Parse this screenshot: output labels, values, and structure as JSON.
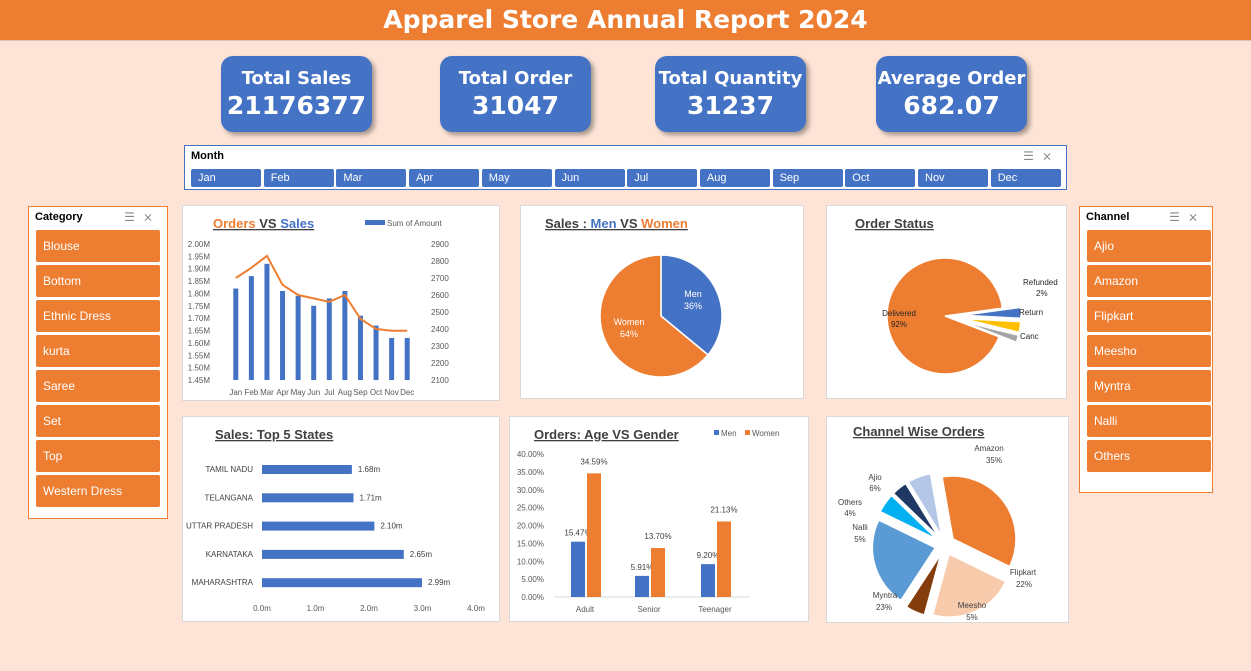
{
  "title": "Apparel Store Annual Report 2024",
  "kpis": [
    {
      "label": "Total Sales",
      "value": "21176377"
    },
    {
      "label": "Total Order",
      "value": "31047"
    },
    {
      "label": "Total Quantity",
      "value": "31237"
    },
    {
      "label": "Average Order",
      "value": "682.07"
    }
  ],
  "month_slicer": {
    "title": "Month",
    "items": [
      "Jan",
      "Feb",
      "Mar",
      "Apr",
      "May",
      "Jun",
      "Jul",
      "Aug",
      "Sep",
      "Oct",
      "Nov",
      "Dec"
    ]
  },
  "category_slicer": {
    "title": "Category",
    "items": [
      "Blouse",
      "Bottom",
      "Ethnic Dress",
      "kurta",
      "Saree",
      "Set",
      "Top",
      "Western Dress"
    ]
  },
  "channel_slicer": {
    "title": "Channel",
    "items": [
      "Ajio",
      "Amazon",
      "Flipkart",
      "Meesho",
      "Myntra",
      "Nalli",
      "Others"
    ]
  },
  "colors": {
    "orange": "#ed7d31",
    "blue": "#4472c4",
    "gold": "#ffc000",
    "grey": "#a5a5a5"
  },
  "chart_data": [
    {
      "id": "orders_vs_sales",
      "type": "bar",
      "title_parts": [
        "Orders",
        " VS ",
        "Sales"
      ],
      "legend": "Sum of Amount",
      "categories": [
        "Jan",
        "Feb",
        "Mar",
        "Apr",
        "May",
        "Jun",
        "Jul",
        "Aug",
        "Sep",
        "Oct",
        "Nov",
        "Dec"
      ],
      "series": [
        {
          "name": "Sum of Amount",
          "values": [
            1.82,
            1.87,
            1.92,
            1.81,
            1.79,
            1.75,
            1.78,
            1.81,
            1.71,
            1.67,
            1.62,
            1.62
          ],
          "axis": "left"
        },
        {
          "values": [
            2700,
            2760,
            2830,
            2660,
            2600,
            2580,
            2560,
            2600,
            2460,
            2400,
            2390,
            2390
          ],
          "axis": "right",
          "type": "line"
        }
      ],
      "y_left_ticks": [
        "2.00M",
        "1.95M",
        "1.90M",
        "1.85M",
        "1.80M",
        "1.75M",
        "1.70M",
        "1.65M",
        "1.60M",
        "1.55M",
        "1.50M",
        "1.45M"
      ],
      "y_right_ticks": [
        "2900",
        "2800",
        "2700",
        "2600",
        "2500",
        "2400",
        "2300",
        "2200",
        "2100"
      ],
      "ylim_left": [
        1.45,
        2.0
      ],
      "ylim_right": [
        2100,
        2900
      ]
    },
    {
      "id": "men_vs_women",
      "type": "pie",
      "title_parts": [
        "Sales : ",
        "Men",
        " VS ",
        "Women"
      ],
      "slices": [
        {
          "label": "Men",
          "value": 36,
          "text": "36%"
        },
        {
          "label": "Women",
          "value": 64,
          "text": "64%"
        }
      ]
    },
    {
      "id": "order_status",
      "type": "pie",
      "title": "Order Status",
      "slices": [
        {
          "label": "Delivered",
          "value": 92,
          "text": "92%"
        },
        {
          "label": "Canc",
          "value": 3,
          "text": ""
        },
        {
          "label": "Return",
          "value": 3,
          "text": ""
        },
        {
          "label": "Refunded",
          "value": 2,
          "text": "2%"
        }
      ]
    },
    {
      "id": "top_states",
      "type": "bar",
      "title": "Sales: Top 5 States",
      "categories": [
        "TAMIL NADU",
        "TELANGANA",
        "UTTAR PRADESH",
        "KARNATAKA",
        "MAHARASHTRA"
      ],
      "values": [
        1.68,
        1.71,
        2.1,
        2.65,
        2.99
      ],
      "labels": [
        "1.68m",
        "1.71m",
        "2.10m",
        "2.65m",
        "2.99m"
      ],
      "x_ticks": [
        "0.0m",
        "1.0m",
        "2.0m",
        "3.0m",
        "4.0m"
      ],
      "xlim": [
        0,
        4
      ]
    },
    {
      "id": "age_vs_gender",
      "type": "bar",
      "title": "Orders: Age VS Gender",
      "categories": [
        "Adult",
        "Senior",
        "Teenager"
      ],
      "series": [
        {
          "name": "Men",
          "values": [
            15.47,
            5.91,
            9.2
          ],
          "labels": [
            "15.47%",
            "5.91%",
            "9.20%"
          ]
        },
        {
          "name": "Women",
          "values": [
            34.59,
            13.7,
            21.13
          ],
          "labels": [
            "34.59%",
            "13.70%",
            "21.13%"
          ]
        }
      ],
      "y_ticks": [
        "40.00%",
        "35.00%",
        "30.00%",
        "25.00%",
        "20.00%",
        "15.00%",
        "10.00%",
        "5.00%",
        "0.00%"
      ],
      "ylim": [
        0,
        40
      ]
    },
    {
      "id": "channel_orders",
      "type": "pie",
      "title": "Channel Wise Orders",
      "slices": [
        {
          "label": "Amazon",
          "value": 35,
          "text": "35%"
        },
        {
          "label": "Flipkart",
          "value": 22,
          "text": "22%"
        },
        {
          "label": "Meesho",
          "value": 5,
          "text": "5%"
        },
        {
          "label": "Myntra",
          "value": 23,
          "text": "23%"
        },
        {
          "label": "Nalli",
          "value": 5,
          "text": "5%"
        },
        {
          "label": "Others",
          "value": 4,
          "text": "4%"
        },
        {
          "label": "Ajio",
          "value": 6,
          "text": "6%"
        }
      ]
    }
  ]
}
